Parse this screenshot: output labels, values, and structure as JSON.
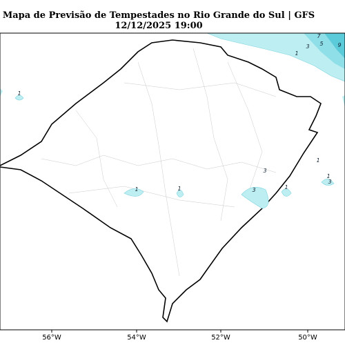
{
  "header": {
    "title": "Mapa de Previsão de Tempestades no Rio Grande do Sul | GFS",
    "subtitle": "12/12/2025 19:00"
  },
  "axis": {
    "x_labels": [
      "56°W",
      "54°W",
      "52°W",
      "50°W"
    ]
  },
  "contour_labels": [
    "1",
    "3",
    "5",
    "7",
    "9",
    "1",
    "1",
    "1",
    "3",
    "3",
    "1",
    "1",
    "3",
    "1"
  ]
}
